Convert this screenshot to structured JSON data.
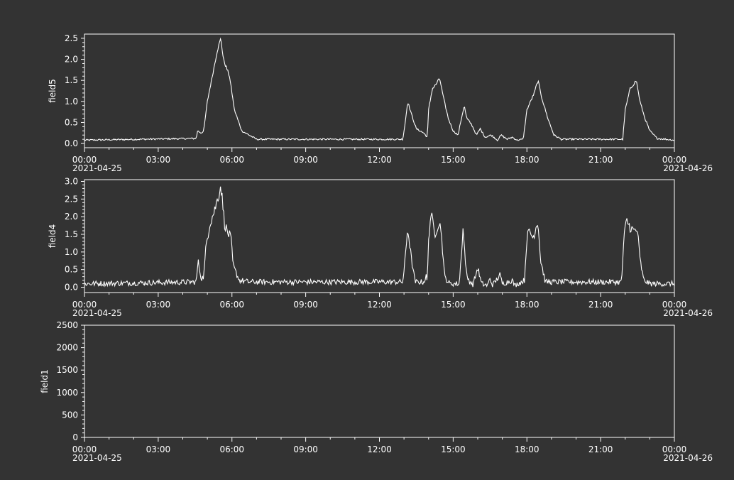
{
  "colors": {
    "background": "#333333",
    "foreground": "#ffffff"
  },
  "x_axis": {
    "start": "2021-04-25 00:00",
    "end": "2021-04-26 00:00",
    "tick_labels": [
      "00:00",
      "03:00",
      "06:00",
      "09:00",
      "12:00",
      "15:00",
      "18:00",
      "21:00",
      "00:00"
    ],
    "start_date_label": "2021-04-25",
    "end_date_label": "2021-04-26"
  },
  "chart_data": [
    {
      "type": "line",
      "ylabel": "field5",
      "ylim": [
        -0.1,
        2.6
      ],
      "y_tick_labels": [
        "0.0",
        "0.5",
        "1.0",
        "1.5",
        "2.0",
        "2.5"
      ],
      "grid": false,
      "series": [
        {
          "x": [
            "00:00",
            "24:00"
          ],
          "keypoints": [
            [
              0,
              0.08
            ],
            [
              4.55,
              0.12
            ],
            [
              4.6,
              0.3
            ],
            [
              4.75,
              0.25
            ],
            [
              4.85,
              0.3
            ],
            [
              5.0,
              1.0
            ],
            [
              5.2,
              1.6
            ],
            [
              5.4,
              2.2
            ],
            [
              5.55,
              2.5
            ],
            [
              5.65,
              2.0
            ],
            [
              5.9,
              1.6
            ],
            [
              6.1,
              0.8
            ],
            [
              6.4,
              0.3
            ],
            [
              7.0,
              0.1
            ],
            [
              12.95,
              0.1
            ],
            [
              13.05,
              0.5
            ],
            [
              13.15,
              1.0
            ],
            [
              13.3,
              0.7
            ],
            [
              13.5,
              0.35
            ],
            [
              13.8,
              0.25
            ],
            [
              13.95,
              0.15
            ],
            [
              14.0,
              0.8
            ],
            [
              14.15,
              1.3
            ],
            [
              14.3,
              1.4
            ],
            [
              14.45,
              1.55
            ],
            [
              14.6,
              1.1
            ],
            [
              14.8,
              0.6
            ],
            [
              15.0,
              0.3
            ],
            [
              15.2,
              0.2
            ],
            [
              15.3,
              0.5
            ],
            [
              15.45,
              0.9
            ],
            [
              15.55,
              0.6
            ],
            [
              15.75,
              0.45
            ],
            [
              15.95,
              0.2
            ],
            [
              16.1,
              0.35
            ],
            [
              16.3,
              0.15
            ],
            [
              16.55,
              0.2
            ],
            [
              16.8,
              0.08
            ],
            [
              16.95,
              0.2
            ],
            [
              17.2,
              0.1
            ],
            [
              17.4,
              0.15
            ],
            [
              17.6,
              0.08
            ],
            [
              17.85,
              0.1
            ],
            [
              18.0,
              0.8
            ],
            [
              18.15,
              1.0
            ],
            [
              18.3,
              1.2
            ],
            [
              18.45,
              1.5
            ],
            [
              18.6,
              1.1
            ],
            [
              18.85,
              0.6
            ],
            [
              19.1,
              0.2
            ],
            [
              19.4,
              0.1
            ],
            [
              21.9,
              0.1
            ],
            [
              22.0,
              0.8
            ],
            [
              22.2,
              1.3
            ],
            [
              22.45,
              1.5
            ],
            [
              22.6,
              1.0
            ],
            [
              22.8,
              0.6
            ],
            [
              23.0,
              0.3
            ],
            [
              23.3,
              0.12
            ],
            [
              24,
              0.08
            ]
          ],
          "noise": 0.03
        }
      ]
    },
    {
      "type": "line",
      "ylabel": "field4",
      "ylim": [
        -0.15,
        3.05
      ],
      "y_tick_labels": [
        "0.0",
        "0.5",
        "1.0",
        "1.5",
        "2.0",
        "2.5",
        "3.0"
      ],
      "grid": false,
      "series": [
        {
          "x": [
            "00:00",
            "24:00"
          ],
          "keypoints": [
            [
              0,
              0.1
            ],
            [
              4.55,
              0.15
            ],
            [
              4.62,
              0.75
            ],
            [
              4.75,
              0.25
            ],
            [
              4.85,
              0.3
            ],
            [
              4.95,
              1.2
            ],
            [
              5.1,
              1.8
            ],
            [
              5.3,
              2.2
            ],
            [
              5.45,
              2.6
            ],
            [
              5.55,
              2.9
            ],
            [
              5.7,
              1.8
            ],
            [
              5.85,
              1.5
            ],
            [
              5.95,
              1.45
            ],
            [
              6.05,
              0.6
            ],
            [
              6.3,
              0.2
            ],
            [
              6.7,
              0.15
            ],
            [
              12.95,
              0.15
            ],
            [
              13.05,
              0.8
            ],
            [
              13.15,
              1.7
            ],
            [
              13.3,
              0.8
            ],
            [
              13.45,
              0.15
            ],
            [
              13.8,
              0.15
            ],
            [
              13.9,
              0.3
            ],
            [
              13.95,
              0.15
            ],
            [
              14.0,
              1.4
            ],
            [
              14.1,
              2.1
            ],
            [
              14.25,
              1.5
            ],
            [
              14.4,
              1.8
            ],
            [
              14.5,
              1.7
            ],
            [
              14.65,
              0.3
            ],
            [
              14.85,
              0.1
            ],
            [
              15.25,
              0.1
            ],
            [
              15.4,
              1.65
            ],
            [
              15.55,
              0.3
            ],
            [
              15.8,
              0.05
            ],
            [
              16.0,
              0.55
            ],
            [
              16.15,
              0.1
            ],
            [
              16.4,
              0.05
            ],
            [
              16.5,
              0.25
            ],
            [
              16.6,
              0.05
            ],
            [
              16.9,
              0.35
            ],
            [
              17.0,
              0.1
            ],
            [
              17.4,
              0.2
            ],
            [
              17.5,
              0.05
            ],
            [
              17.9,
              0.2
            ],
            [
              18.0,
              1.4
            ],
            [
              18.1,
              1.6
            ],
            [
              18.25,
              1.4
            ],
            [
              18.45,
              1.9
            ],
            [
              18.55,
              0.8
            ],
            [
              18.75,
              0.15
            ],
            [
              21.85,
              0.15
            ],
            [
              21.95,
              1.4
            ],
            [
              22.05,
              1.9
            ],
            [
              22.2,
              1.7
            ],
            [
              22.35,
              1.6
            ],
            [
              22.5,
              1.6
            ],
            [
              22.6,
              0.8
            ],
            [
              22.75,
              0.2
            ],
            [
              23.0,
              0.1
            ],
            [
              24,
              0.1
            ]
          ],
          "noise": 0.12
        }
      ]
    },
    {
      "type": "line",
      "ylabel": "field1",
      "ylim": [
        0,
        2500
      ],
      "y_tick_labels": [
        "0",
        "500",
        "1000",
        "1500",
        "2000",
        "2500"
      ],
      "grid": false,
      "series": []
    }
  ]
}
